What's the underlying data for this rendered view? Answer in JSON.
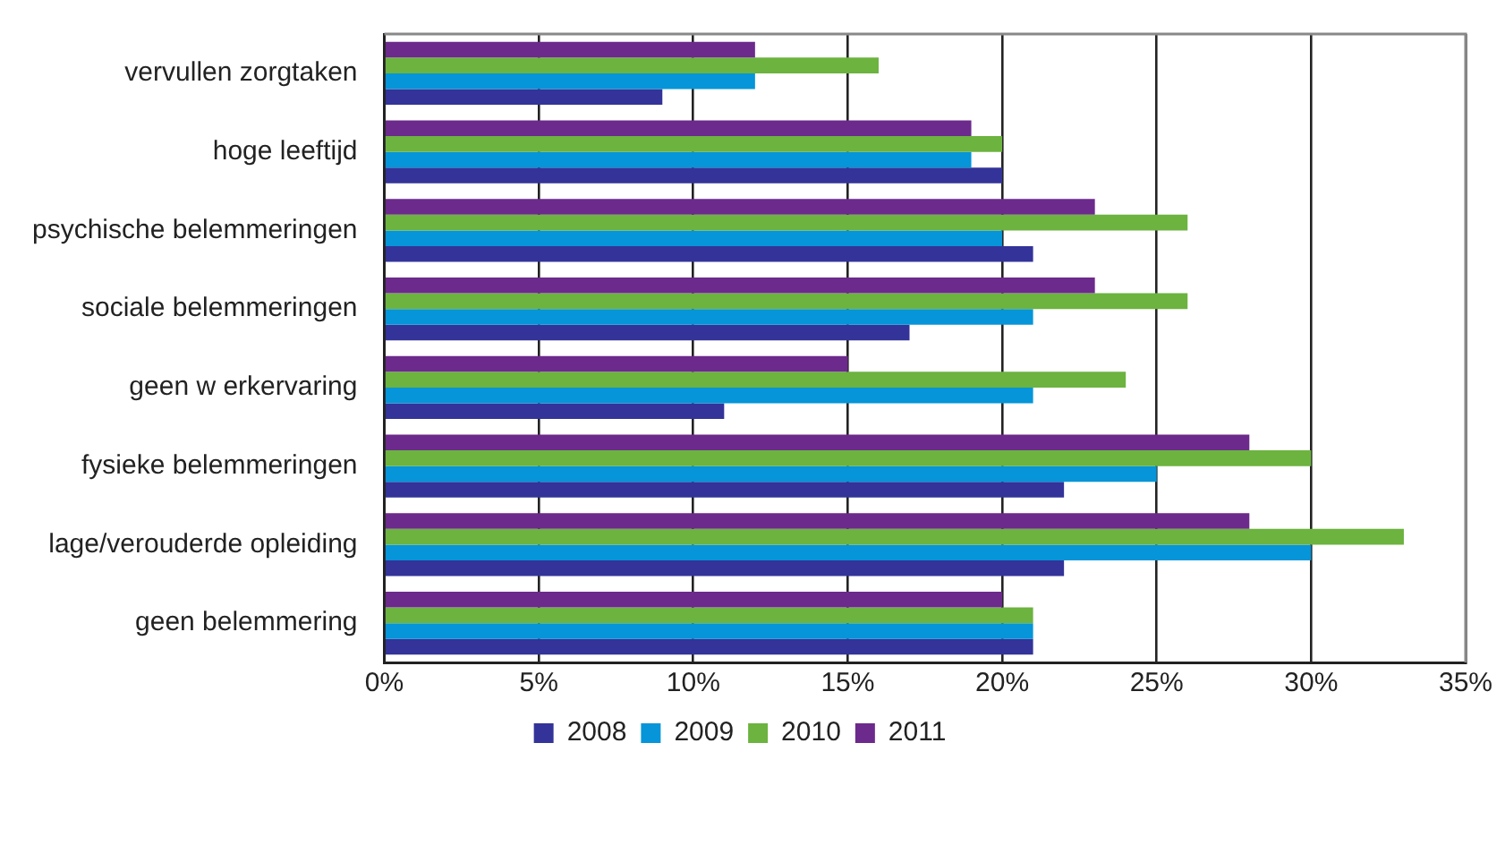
{
  "chart_data": {
    "type": "bar",
    "orientation": "horizontal",
    "categories": [
      "vervullen zorgtaken",
      "hoge leeftijd",
      "psychische belemmeringen",
      "sociale belemmeringen",
      "geen w erkervaring",
      "fysieke belemmeringen",
      "lage/verouderde opleiding",
      "geen belemmering"
    ],
    "series": [
      {
        "name": "2008",
        "color": "#333399",
        "values": [
          9,
          20,
          21,
          17,
          11,
          22,
          22,
          21
        ]
      },
      {
        "name": "2009",
        "color": "#0595d8",
        "values": [
          12,
          19,
          20,
          21,
          21,
          25,
          30,
          21
        ]
      },
      {
        "name": "2010",
        "color": "#6cb33f",
        "values": [
          16,
          20,
          26,
          26,
          24,
          30,
          33,
          21
        ]
      },
      {
        "name": "2011",
        "color": "#6c2a8c",
        "values": [
          12,
          19,
          23,
          23,
          15,
          28,
          28,
          20
        ]
      }
    ],
    "xlim": [
      0,
      35
    ],
    "xticks": [
      {
        "value": 0,
        "label": "0%"
      },
      {
        "value": 5,
        "label": "5%"
      },
      {
        "value": 10,
        "label": "10%"
      },
      {
        "value": 15,
        "label": "15%"
      },
      {
        "value": 20,
        "label": "20%"
      },
      {
        "value": 25,
        "label": "25%"
      },
      {
        "value": 30,
        "label": "30%"
      },
      {
        "value": 35,
        "label": "35%"
      }
    ],
    "grid": "x",
    "legend": "bottom"
  }
}
